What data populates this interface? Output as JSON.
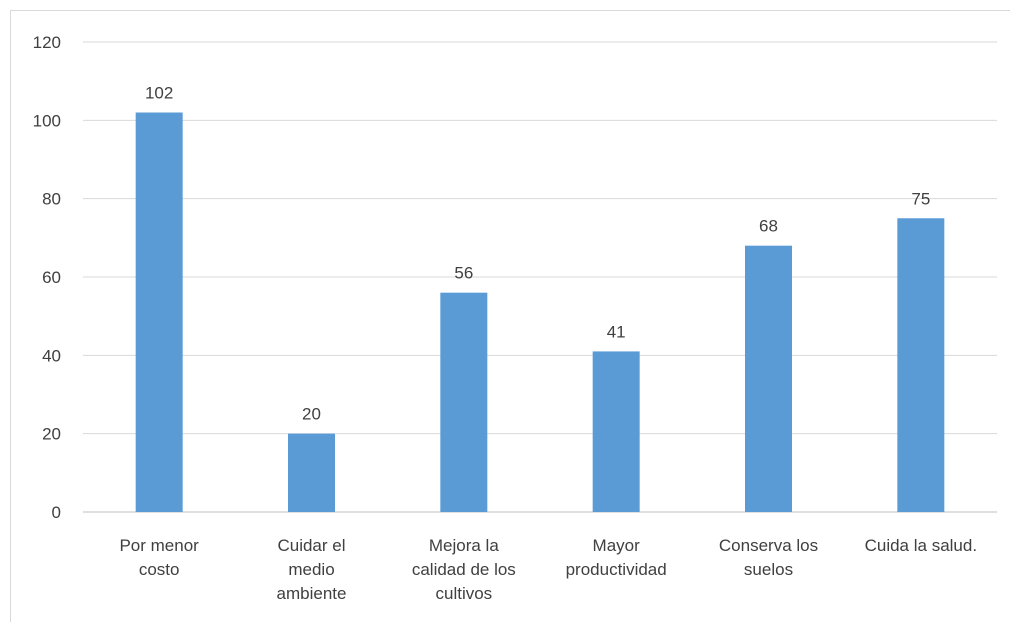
{
  "chart_data": {
    "type": "bar",
    "title": "",
    "xlabel": "",
    "ylabel": "",
    "categories": [
      [
        "Por menor",
        "costo"
      ],
      [
        "Cuidar el",
        "medio",
        "ambiente"
      ],
      [
        "Mejora la",
        "calidad de los",
        "cultivos"
      ],
      [
        "Mayor",
        "productividad"
      ],
      [
        "Conserva los",
        "suelos"
      ],
      [
        "Cuida la salud."
      ]
    ],
    "values": [
      102,
      20,
      56,
      41,
      68,
      75
    ],
    "data_labels": [
      "102",
      "20",
      "56",
      "41",
      "68",
      "75"
    ],
    "ylim": [
      0,
      120
    ],
    "yticks": [
      0,
      20,
      40,
      60,
      80,
      100,
      120
    ],
    "ytick_labels": [
      "0",
      "20",
      "40",
      "60",
      "80",
      "100",
      "120"
    ],
    "grid": true,
    "legend": "none",
    "colors": {
      "bar": "#5b9bd5",
      "grid": "#d9d9d9",
      "text": "#404040"
    }
  }
}
